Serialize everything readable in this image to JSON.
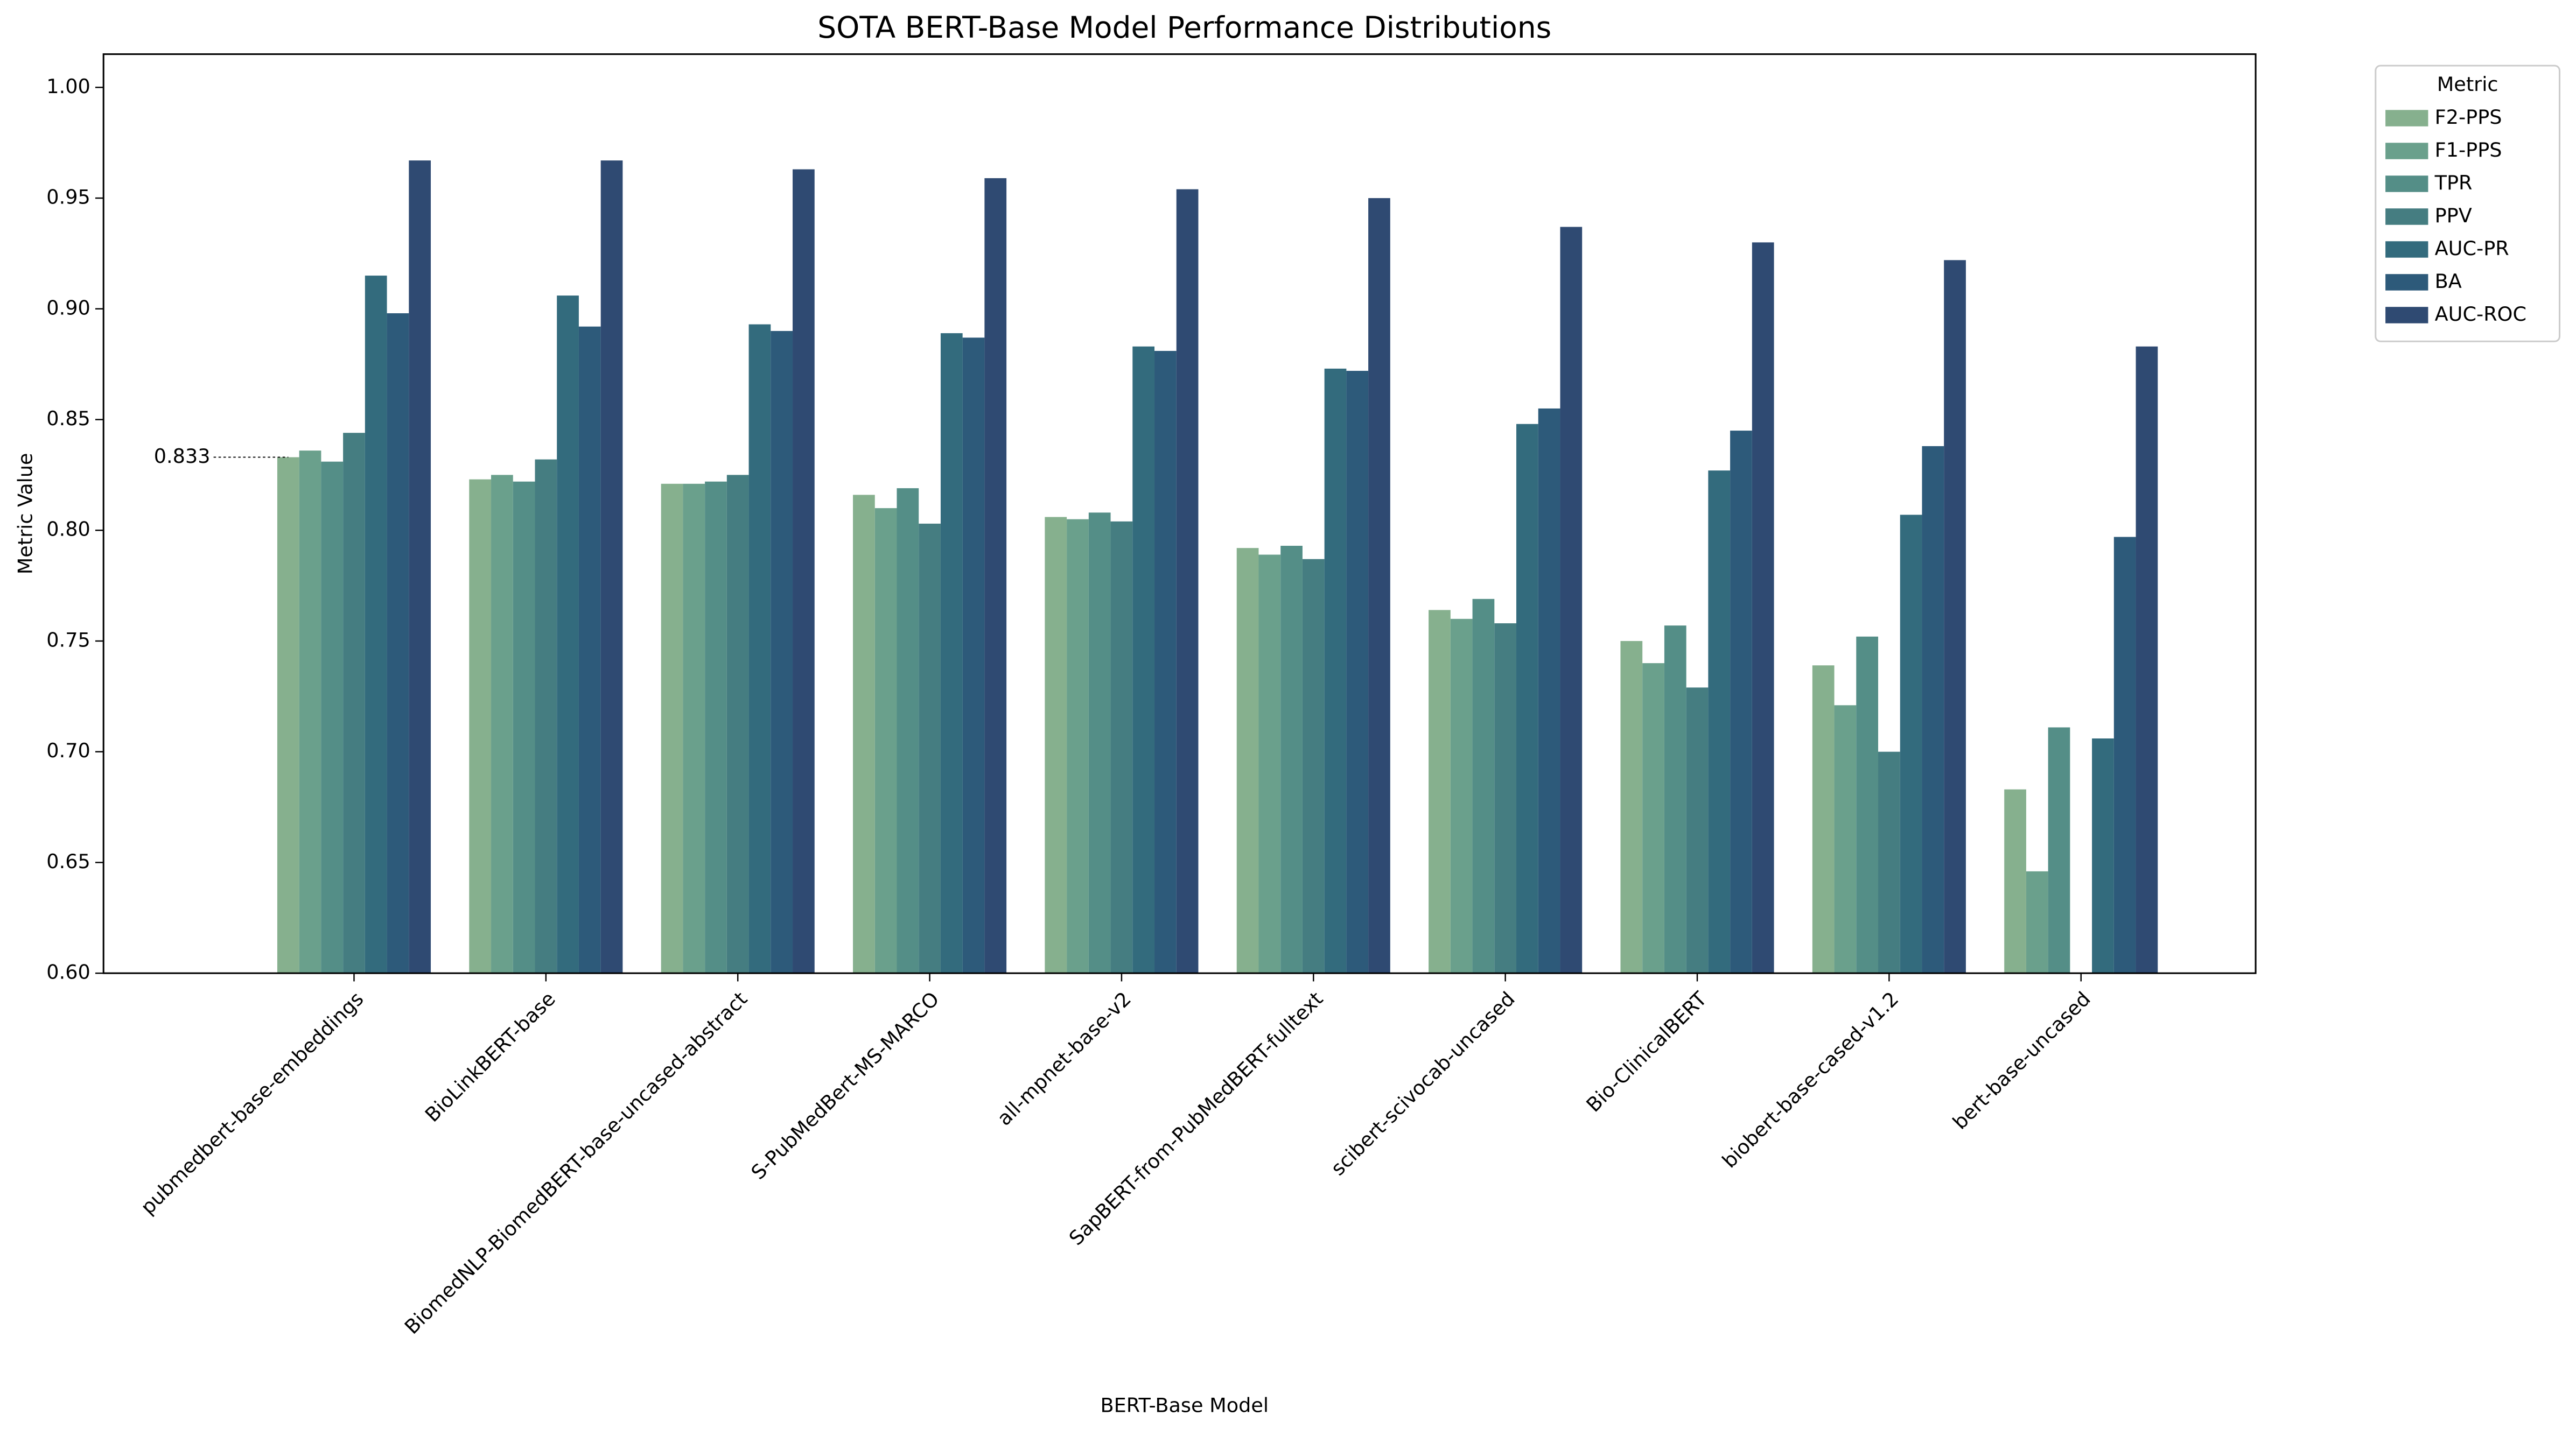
{
  "chart_data": {
    "type": "bar",
    "title": "SOTA BERT-Base Model Performance Distributions",
    "x_label": "BERT-Base Model",
    "y_label": "Metric Value",
    "legend_title": "Metric",
    "legend_position": "outside-upper-right",
    "categories": [
      "pubmedbert-base-embeddings",
      "BioLinkBERT-base",
      "BiomedNLP-BiomedBERT-base-uncased-abstract",
      "S-PubMedBert-MS-MARCO",
      "all-mpnet-base-v2",
      "SapBERT-from-PubMedBERT-fulltext",
      "scibert-scivocab-uncased",
      "Bio-ClinicalBERT",
      "biobert-base-cased-v1.2",
      "bert-base-uncased"
    ],
    "series": [
      {
        "name": "F2-PPS",
        "color": "#86b08e",
        "values": [
          0.833,
          0.823,
          0.821,
          0.816,
          0.806,
          0.792,
          0.764,
          0.75,
          0.739,
          0.683
        ]
      },
      {
        "name": "F1-PPS",
        "color": "#6aa08c",
        "values": [
          0.836,
          0.825,
          0.821,
          0.81,
          0.805,
          0.789,
          0.76,
          0.74,
          0.721,
          0.646
        ]
      },
      {
        "name": "TPR",
        "color": "#548e87",
        "values": [
          0.831,
          0.822,
          0.822,
          0.819,
          0.808,
          0.793,
          0.769,
          0.757,
          0.752,
          0.711
        ]
      },
      {
        "name": "PPV",
        "color": "#457d81",
        "values": [
          0.844,
          0.832,
          0.825,
          0.803,
          0.804,
          0.787,
          0.758,
          0.729,
          0.7,
          null
        ]
      },
      {
        "name": "AUC-PR",
        "color": "#336b7d",
        "values": [
          0.915,
          0.906,
          0.893,
          0.889,
          0.883,
          0.873,
          0.848,
          0.827,
          0.807,
          0.706
        ]
      },
      {
        "name": "BA",
        "color": "#2d5a7a",
        "values": [
          0.898,
          0.892,
          0.89,
          0.887,
          0.881,
          0.872,
          0.855,
          0.845,
          0.838,
          0.797
        ]
      },
      {
        "name": "AUC-ROC",
        "color": "#2f4a72",
        "values": [
          0.967,
          0.967,
          0.963,
          0.959,
          0.954,
          0.95,
          0.937,
          0.93,
          0.922,
          0.883
        ]
      }
    ],
    "annotations": [
      0.833
    ],
    "ylim": [
      0.6,
      1.015
    ],
    "yticks": [
      {
        "value": 0.6,
        "label": "0.60"
      },
      0.65,
      {
        "value": 0.7,
        "label": "0.70"
      },
      0.75,
      {
        "value": 0.8,
        "label": "0.80"
      },
      0.85,
      {
        "value": 0.9,
        "label": "0.90"
      },
      0.95,
      {
        "value": 1.0,
        "label": "1.00"
      }
    ],
    "grid": false
  }
}
